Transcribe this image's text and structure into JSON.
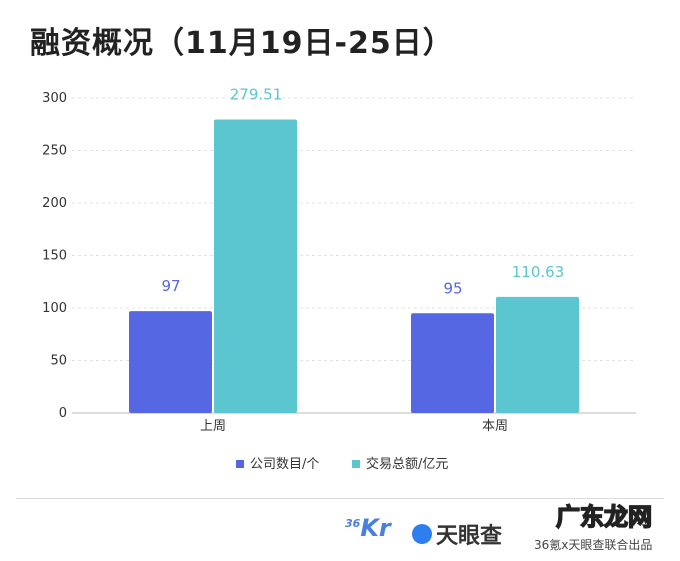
{
  "title": "融资概况（11月19日-25日）",
  "chart_data": {
    "type": "bar",
    "categories": [
      "上周",
      "本周"
    ],
    "series": [
      {
        "name": "公司数目/个",
        "color": "#5667e3",
        "values": [
          97,
          95
        ]
      },
      {
        "name": "交易总额/亿元",
        "color": "#5bc6d0",
        "values": [
          279.51,
          110.63
        ]
      }
    ],
    "data_labels": [
      [
        "97",
        "95"
      ],
      [
        "279.51",
        "110.63"
      ]
    ],
    "yticks": [
      "0",
      "50",
      "100",
      "150",
      "200",
      "250",
      "300"
    ],
    "ylim": [
      0,
      300
    ],
    "grid": true,
    "legend": "bottom"
  },
  "footer": {
    "logo_36kr": "36Kr",
    "logo_tyc": "天眼查",
    "text": "36氪x天眼查联合出品",
    "watermark": "广东龙网"
  }
}
